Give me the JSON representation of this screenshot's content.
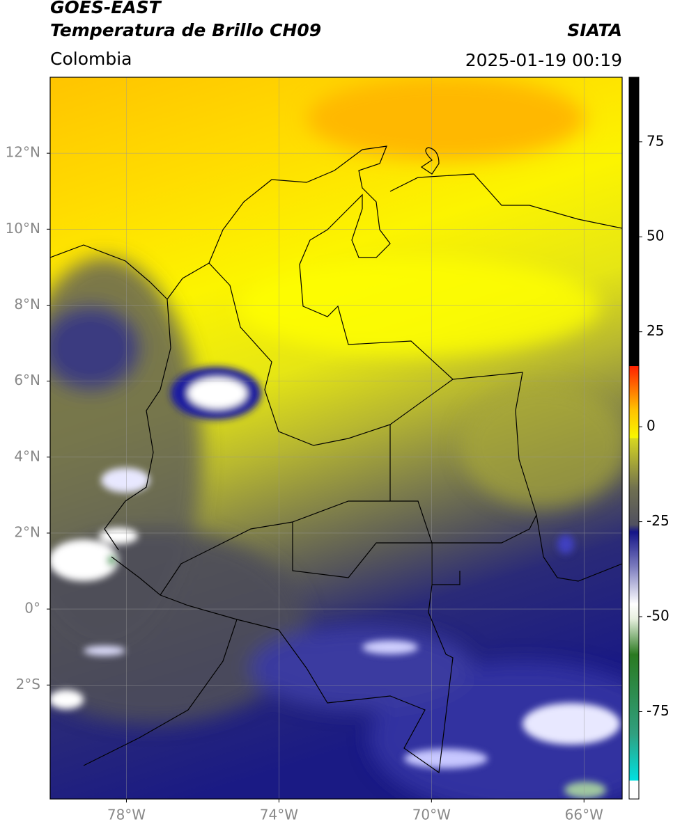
{
  "header": {
    "satellite": "GOES-EAST",
    "product": "Temperatura de Brillo CH09",
    "source": "SIATA",
    "region": "Colombia",
    "datetime": "2025-01-19 00:19"
  },
  "map": {
    "xlim": [
      -80,
      -65
    ],
    "ylim": [
      -5,
      14
    ],
    "xticks": [
      {
        "value": -78,
        "label": "78°W"
      },
      {
        "value": -74,
        "label": "74°W"
      },
      {
        "value": -70,
        "label": "70°W"
      },
      {
        "value": -66,
        "label": "66°W"
      }
    ],
    "yticks": [
      {
        "value": 12,
        "label": "12°N"
      },
      {
        "value": 10,
        "label": "10°N"
      },
      {
        "value": 8,
        "label": "8°N"
      },
      {
        "value": 6,
        "label": "6°N"
      },
      {
        "value": 4,
        "label": "4°N"
      },
      {
        "value": 2,
        "label": "2°N"
      },
      {
        "value": 0,
        "label": "0°"
      },
      {
        "value": -2,
        "label": "2°S"
      }
    ],
    "grid": true
  },
  "colorbar": {
    "range": [
      -98,
      92
    ],
    "ticks": [
      75,
      50,
      25,
      0,
      -25,
      -50,
      -75
    ]
  }
}
